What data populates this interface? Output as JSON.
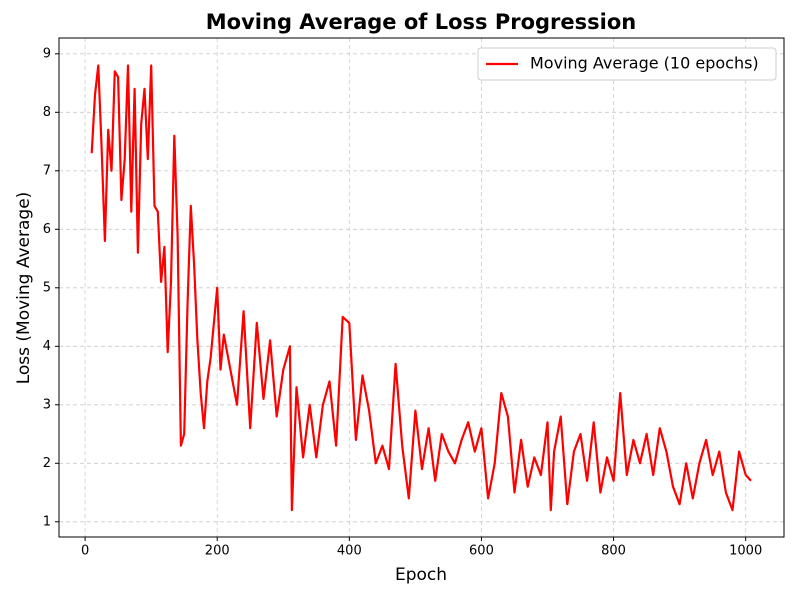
{
  "chart_data": {
    "type": "line",
    "title": "Moving Average of Loss Progression",
    "x_label": "Epoch",
    "y_label": "Loss (Moving Average)",
    "x": [
      10,
      15,
      20,
      25,
      30,
      35,
      40,
      45,
      50,
      55,
      60,
      65,
      70,
      75,
      80,
      85,
      90,
      95,
      100,
      105,
      110,
      115,
      120,
      125,
      130,
      135,
      140,
      145,
      150,
      155,
      160,
      165,
      170,
      175,
      180,
      185,
      190,
      200,
      205,
      210,
      220,
      230,
      240,
      250,
      260,
      270,
      280,
      290,
      300,
      310,
      313,
      320,
      330,
      340,
      350,
      360,
      370,
      380,
      390,
      400,
      410,
      420,
      430,
      440,
      450,
      460,
      470,
      480,
      490,
      500,
      510,
      520,
      530,
      540,
      550,
      560,
      570,
      580,
      590,
      600,
      610,
      620,
      630,
      640,
      650,
      660,
      670,
      680,
      690,
      700,
      705,
      710,
      720,
      730,
      740,
      750,
      760,
      770,
      780,
      790,
      800,
      810,
      820,
      830,
      840,
      850,
      860,
      870,
      880,
      890,
      900,
      910,
      920,
      930,
      940,
      950,
      960,
      970,
      980,
      990,
      1000,
      1008
    ],
    "series": [
      {
        "name": "Moving Average (10 epochs)",
        "color": "#ff0000",
        "values": [
          7.3,
          8.3,
          8.8,
          7.4,
          5.8,
          7.7,
          7.0,
          8.7,
          8.6,
          6.5,
          7.2,
          8.8,
          6.3,
          8.4,
          5.6,
          7.8,
          8.4,
          7.2,
          8.8,
          6.4,
          6.3,
          5.1,
          5.7,
          3.9,
          5.1,
          7.6,
          5.9,
          2.3,
          2.5,
          4.7,
          6.4,
          5.4,
          4.1,
          3.2,
          2.6,
          3.4,
          3.8,
          5.0,
          3.6,
          4.2,
          3.6,
          3.0,
          4.6,
          2.6,
          4.4,
          3.1,
          4.1,
          2.8,
          3.6,
          4.0,
          1.2,
          3.3,
          2.1,
          3.0,
          2.1,
          3.0,
          3.4,
          2.3,
          4.5,
          4.4,
          2.4,
          3.5,
          2.9,
          2.0,
          2.3,
          1.9,
          3.7,
          2.3,
          1.4,
          2.9,
          1.9,
          2.6,
          1.7,
          2.5,
          2.2,
          2.0,
          2.4,
          2.7,
          2.2,
          2.6,
          1.4,
          2.0,
          3.2,
          2.8,
          1.5,
          2.4,
          1.6,
          2.1,
          1.8,
          2.7,
          1.2,
          2.2,
          2.8,
          1.3,
          2.2,
          2.5,
          1.7,
          2.7,
          1.5,
          2.1,
          1.7,
          3.2,
          1.8,
          2.4,
          2.0,
          2.5,
          1.8,
          2.6,
          2.2,
          1.6,
          1.3,
          2.0,
          1.4,
          2.0,
          2.4,
          1.8,
          2.2,
          1.5,
          1.2,
          2.2,
          1.8,
          1.7
        ]
      }
    ],
    "xlim": [
      -39.5,
      1058
    ],
    "ylim": [
      0.74,
      9.27
    ],
    "xticks": [
      0,
      200,
      400,
      600,
      800,
      1000
    ],
    "yticks": [
      1,
      2,
      3,
      4,
      5,
      6,
      7,
      8,
      9
    ],
    "grid": true,
    "legend": "upper right"
  }
}
